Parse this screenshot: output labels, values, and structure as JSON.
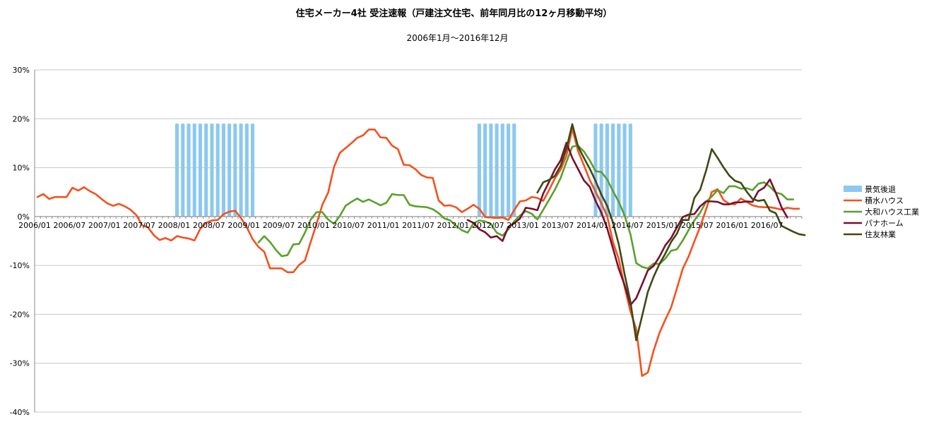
{
  "chart_data": {
    "type": "line",
    "title": "住宅メーカー4社 受注速報（戸建注文住宅、前年同月比の12ヶ月移動平均）",
    "subtitle": "2006年1月～2016年12月",
    "ylim": [
      -40,
      30
    ],
    "y_ticks": [
      {
        "value": 30,
        "label": "30%"
      },
      {
        "value": 20,
        "label": "20%"
      },
      {
        "value": 10,
        "label": "10%"
      },
      {
        "value": 0,
        "label": "0%"
      },
      {
        "value": -10,
        "label": "-10%"
      },
      {
        "value": -20,
        "label": "-20%"
      },
      {
        "value": -30,
        "label": "-30%"
      },
      {
        "value": -40,
        "label": "-40%"
      }
    ],
    "x_ticks": [
      {
        "index": 0,
        "label": "2006/01"
      },
      {
        "index": 6,
        "label": "2006/07"
      },
      {
        "index": 12,
        "label": "2007/01"
      },
      {
        "index": 18,
        "label": "2007/07"
      },
      {
        "index": 24,
        "label": "2008/01"
      },
      {
        "index": 30,
        "label": "2008/07"
      },
      {
        "index": 36,
        "label": "2009/01"
      },
      {
        "index": 42,
        "label": "2009/07"
      },
      {
        "index": 48,
        "label": "2010/01"
      },
      {
        "index": 54,
        "label": "2010/07"
      },
      {
        "index": 60,
        "label": "2011/01"
      },
      {
        "index": 66,
        "label": "2011/07"
      },
      {
        "index": 72,
        "label": "2012/01"
      },
      {
        "index": 78,
        "label": "2012/07"
      },
      {
        "index": 84,
        "label": "2013/01"
      },
      {
        "index": 90,
        "label": "2013/07"
      },
      {
        "index": 96,
        "label": "2014/01"
      },
      {
        "index": 102,
        "label": "2014/07"
      },
      {
        "index": 108,
        "label": "2015/01"
      },
      {
        "index": 114,
        "label": "2015/07"
      },
      {
        "index": 120,
        "label": "2016/01"
      },
      {
        "index": 126,
        "label": "2016/07"
      }
    ],
    "x_count": 132,
    "grid": true,
    "legend_position": "right",
    "recession": {
      "name": "景気後退",
      "color": "#8cc8f0",
      "value": 19,
      "indices": [
        24,
        25,
        26,
        27,
        28,
        29,
        30,
        31,
        32,
        33,
        34,
        35,
        36,
        37,
        76,
        77,
        78,
        79,
        80,
        81,
        82,
        96,
        97,
        98,
        99,
        100,
        101,
        102
      ]
    },
    "series": [
      {
        "name": "積水ハウス",
        "color": "#f4511e",
        "start": 0,
        "values": [
          4,
          4.6,
          3.6,
          4,
          4,
          4,
          5.9,
          5.3,
          6,
          5.2,
          4.6,
          3.6,
          2.7,
          2.2,
          2.6,
          2.1,
          1.4,
          0.3,
          -1.8,
          -2.2,
          -3.8,
          -4.8,
          -4.4,
          -4.9,
          -4,
          -4.3,
          -4.5,
          -4.9,
          -2.5,
          -1.3,
          -0.8,
          -0.7,
          0.5,
          1,
          1.2,
          -0.3,
          -2.2,
          -4.6,
          -6.2,
          -7.2,
          -10.6,
          -10.6,
          -10.6,
          -11.4,
          -11.4,
          -9.9,
          -9,
          -5.2,
          -1.5,
          2.4,
          4.9,
          10.1,
          13,
          14,
          15,
          16.1,
          16.6,
          17.8,
          17.8,
          16.2,
          16.1,
          14.5,
          13.8,
          10.6,
          10.5,
          9.7,
          8.5,
          8,
          7.9,
          3.3,
          2.2,
          2.3,
          1.9,
          0.9,
          1.6,
          2.4,
          1.6,
          -0.1,
          -0.2,
          -0.3,
          -0.2,
          -0.7,
          1.3,
          3.1,
          3.3,
          4,
          3.8,
          3.2,
          5.4,
          7.8,
          9.6,
          12.5,
          18,
          13.4,
          10.5,
          7.5,
          5.1,
          2.7,
          0.1,
          -5.2,
          -8.7,
          -14.4,
          -19.4,
          -23,
          -32.6,
          -31.9,
          -27.4,
          -23.8,
          -21.1,
          -18.6,
          -14.7,
          -10.7,
          -8.2,
          -5.1,
          -2.1,
          1.4,
          5,
          5.6,
          3.4,
          2.6,
          2.5,
          3.7,
          3,
          2.3,
          2,
          1.9,
          1.9,
          1.7,
          1.4,
          1.8,
          1.6,
          1.6
        ]
      },
      {
        "name": "大和ハウス工業",
        "color": "#5aa02c",
        "start": 38,
        "values": [
          -5.3,
          -4,
          -5.2,
          -6.8,
          -8.1,
          -7.9,
          -5.7,
          -5.6,
          -3.3,
          -0.6,
          0.9,
          0.9,
          -0.6,
          -1.5,
          0.1,
          2.2,
          3,
          3.7,
          3,
          3.5,
          2.9,
          2.3,
          2.8,
          4.6,
          4.4,
          4.4,
          2.4,
          2.1,
          2,
          1.9,
          1.5,
          0.7,
          -0.4,
          -0.8,
          -1.9,
          -2.8,
          -3.3,
          -1.4,
          -0.8,
          -1,
          -1.5,
          -3.3,
          -3.9,
          -2.6,
          -1,
          0.2,
          1.1,
          0.6,
          -0.6,
          1.4,
          3.4,
          5.5,
          7.9,
          11.2,
          14.3,
          14.5,
          13.3,
          11.5,
          9.3,
          9.1,
          7.6,
          5.2,
          3,
          0.2,
          -3.6,
          -9.5,
          -10.3,
          -10.6,
          -9.6,
          -9.7,
          -8.6,
          -7,
          -6.7,
          -4.9,
          -2.8,
          -0.8,
          0.8,
          3,
          4.1,
          5.4,
          4.8,
          6.2,
          6.2,
          5.7,
          5.8,
          5.4,
          6.7,
          7,
          6.1,
          4.9,
          4.6,
          3.5,
          3.5
        ]
      },
      {
        "name": "パナホーム",
        "color": "#7b0f2e",
        "start": 74,
        "values": [
          -0.7,
          -1.3,
          -2.6,
          -3.2,
          -4.3,
          -4,
          -5,
          -2.1,
          -1.4,
          -0.4,
          1.8,
          1.6,
          1.3,
          4.7,
          7.1,
          9.6,
          11.5,
          15.1,
          12,
          9.7,
          7.4,
          6.1,
          3.2,
          0.8,
          -2.4,
          -6.5,
          -10.7,
          -14,
          -18.1,
          -16.7,
          -13.9,
          -11,
          -10.1,
          -8.2,
          -5.9,
          -4.4,
          -2.2,
          -0.1,
          0.4,
          0.5,
          2.1,
          3.1,
          3.1,
          3,
          2.5,
          2.5,
          2.9,
          2.9,
          3.1,
          3,
          5.2,
          5.9,
          7.6,
          4.9,
          1.9,
          -0.2
        ]
      },
      {
        "name": "住友林業",
        "color": "#3c4a14",
        "start": 86,
        "values": [
          4.9,
          7,
          7.5,
          8.3,
          10.4,
          13.9,
          18.9,
          14.3,
          12,
          9.8,
          7.3,
          4.5,
          2.2,
          -1.2,
          -5.7,
          -11.8,
          -17.4,
          -25.3,
          -20.4,
          -15.4,
          -12.3,
          -9.7,
          -7.6,
          -5.2,
          -3.5,
          -0.7,
          -0.7,
          3.8,
          5.5,
          9.3,
          13.8,
          12,
          10.1,
          8.4,
          7.3,
          6.9,
          5.1,
          3.6,
          3.2,
          3.4,
          1.2,
          0.7,
          -1.9,
          -2.5,
          -3.1,
          -3.6,
          -3.8
        ]
      }
    ]
  }
}
